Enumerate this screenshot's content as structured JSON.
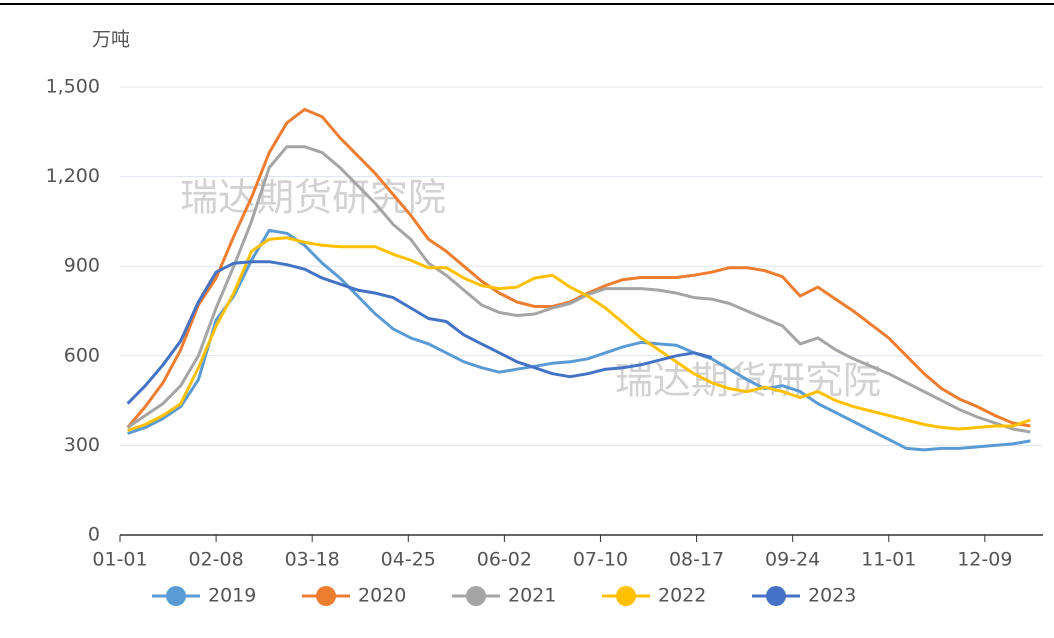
{
  "chart_data": {
    "type": "line",
    "y_unit": "万吨",
    "annotations": [
      "瑞达期货研究院",
      "瑞达期货研究院"
    ],
    "x": [
      3,
      10,
      17,
      24,
      31,
      38,
      45,
      52,
      59,
      66,
      73,
      80,
      87,
      94,
      101,
      108,
      115,
      122,
      129,
      136,
      143,
      150,
      157,
      164,
      171,
      178,
      185,
      192,
      199,
      206,
      213,
      220,
      227,
      234,
      241,
      248,
      255,
      262,
      269,
      276,
      283,
      290,
      297,
      304,
      311,
      318,
      325,
      332,
      339,
      346,
      353,
      360
    ],
    "xlim": [
      0,
      365
    ],
    "xticks": [
      {
        "value": 0,
        "label": "01-01"
      },
      {
        "value": 38,
        "label": "02-08"
      },
      {
        "value": 76,
        "label": "03-18"
      },
      {
        "value": 114,
        "label": "04-25"
      },
      {
        "value": 152,
        "label": "06-02"
      },
      {
        "value": 190,
        "label": "07-10"
      },
      {
        "value": 228,
        "label": "08-17"
      },
      {
        "value": 266,
        "label": "09-24"
      },
      {
        "value": 304,
        "label": "11-01"
      },
      {
        "value": 342,
        "label": "12-09"
      }
    ],
    "ylim": [
      0,
      1500
    ],
    "yticks": [
      0,
      300,
      600,
      900,
      {
        "value": 1200,
        "label": "1,200"
      },
      {
        "value": 1500,
        "label": "1,500"
      }
    ],
    "grid": true,
    "legend": "bottom",
    "series": [
      {
        "name": "2019",
        "color": "#5b9bd5",
        "values": [
          340,
          360,
          390,
          430,
          520,
          720,
          800,
          920,
          1020,
          1010,
          970,
          910,
          860,
          800,
          740,
          690,
          660,
          640,
          610,
          580,
          560,
          545,
          555,
          565,
          575,
          580,
          590,
          610,
          630,
          645,
          640,
          635,
          610,
          590,
          555,
          520,
          490,
          500,
          480,
          440,
          410,
          380,
          350,
          320,
          290,
          285,
          290,
          290,
          295,
          300,
          305,
          315
        ]
      },
      {
        "name": "2020",
        "color": "#ed7d31",
        "values": [
          360,
          430,
          510,
          620,
          770,
          860,
          1000,
          1130,
          1280,
          1380,
          1425,
          1400,
          1330,
          1270,
          1210,
          1140,
          1070,
          990,
          950,
          900,
          850,
          810,
          780,
          765,
          765,
          780,
          810,
          835,
          855,
          862,
          862,
          862,
          870,
          880,
          895,
          895,
          885,
          865,
          800,
          830,
          790,
          750,
          705,
          660,
          600,
          540,
          490,
          455,
          430,
          400,
          375,
          365
        ]
      },
      {
        "name": "2021",
        "color": "#a5a5a5",
        "values": [
          360,
          400,
          440,
          500,
          600,
          760,
          900,
          1050,
          1230,
          1300,
          1300,
          1280,
          1230,
          1170,
          1110,
          1040,
          990,
          910,
          870,
          820,
          770,
          745,
          735,
          740,
          760,
          775,
          805,
          825,
          825,
          825,
          820,
          810,
          795,
          790,
          775,
          750,
          725,
          700,
          640,
          660,
          620,
          590,
          565,
          540,
          510,
          480,
          450,
          420,
          395,
          375,
          355,
          345
        ]
      },
      {
        "name": "2022",
        "color": "#ffc000",
        "values": [
          350,
          370,
          400,
          440,
          560,
          700,
          810,
          950,
          990,
          995,
          980,
          970,
          965,
          965,
          965,
          940,
          920,
          895,
          895,
          860,
          835,
          825,
          830,
          860,
          870,
          830,
          800,
          760,
          710,
          660,
          620,
          580,
          540,
          510,
          490,
          480,
          495,
          480,
          460,
          480,
          450,
          430,
          415,
          400,
          385,
          370,
          360,
          355,
          360,
          365,
          365,
          385
        ]
      },
      {
        "name": "2023",
        "color": "#4472c4",
        "values": [
          440,
          500,
          570,
          650,
          780,
          880,
          910,
          915,
          915,
          905,
          890,
          860,
          840,
          820,
          810,
          795,
          760,
          725,
          715,
          670,
          640,
          610,
          580,
          560,
          540,
          530,
          540,
          555,
          560,
          570,
          585,
          600,
          610,
          595,
          null,
          null,
          null,
          null,
          null,
          null,
          null,
          null,
          null,
          null,
          null,
          null,
          null,
          null,
          null,
          null,
          null,
          null
        ]
      }
    ]
  }
}
